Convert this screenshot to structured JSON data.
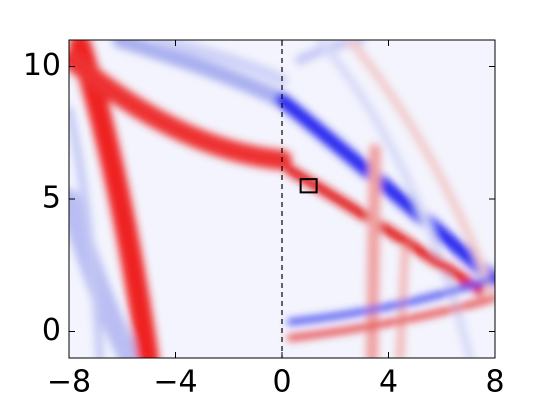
{
  "chart_data": {
    "type": "heatmap",
    "xlim": [
      -8,
      8
    ],
    "ylim": [
      -1,
      11
    ],
    "xticks": [
      {
        "value": -8,
        "label": "−8"
      },
      {
        "value": -4,
        "label": "−4"
      },
      0,
      4,
      8
    ],
    "yticks": [
      0,
      5,
      10
    ],
    "vline": 0,
    "box": {
      "x": [
        0.7,
        1.3
      ],
      "y": [
        5.25,
        5.75
      ]
    }
  }
}
